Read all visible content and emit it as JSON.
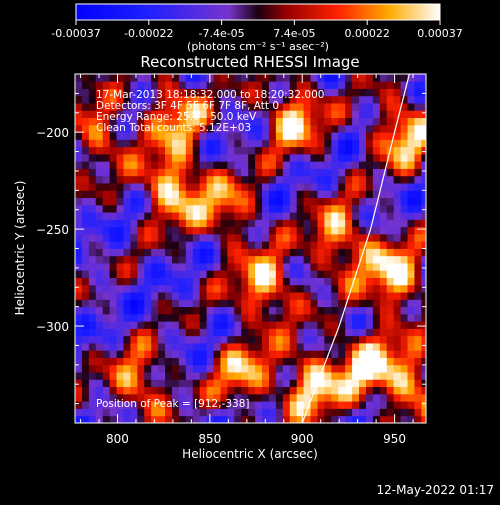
{
  "chart_data": {
    "type": "heatmap",
    "title": "Reconstructed RHESSI Image",
    "xlabel": "Heliocentric X (arcsec)",
    "ylabel": "Heliocentric Y (arcsec)",
    "xlim": [
      777,
      967
    ],
    "ylim": [
      -350,
      -170
    ],
    "x_ticks": [
      800,
      850,
      900,
      950
    ],
    "y_ticks": [
      -200,
      -250,
      -300
    ],
    "colorbar": {
      "min": -0.00037,
      "max": 0.00037,
      "tick_labels": [
        "-0.00037",
        "-0.00022",
        "-7.4e-05",
        "7.4e-05",
        "0.00022",
        "0.00037"
      ],
      "units": "(photons cm⁻² s⁻¹ asec⁻²)"
    },
    "annotations": [
      "17-Mar-2013 18:18:32.000 to 18:20:32.000",
      "Detectors: 3F 4F 5F 6F 7F 8F, Att 0",
      "Energy Range: 25.0 - 50.0 keV",
      "Clean     Total counts: 5.12E+03",
      "Position of Peak = [912,-338]"
    ],
    "peak": [
      912,
      -338
    ],
    "limb_curve": [
      [
        900,
        -350
      ],
      [
        920,
        -300
      ],
      [
        937,
        -250
      ],
      [
        950,
        -200
      ],
      [
        958,
        -170
      ]
    ],
    "intensity_hotspots": [
      {
        "x": 830,
        "y": -228,
        "value": 0.00034
      },
      {
        "x": 832,
        "y": -190,
        "value": 0.00024
      },
      {
        "x": 895,
        "y": -192,
        "value": 0.00028
      },
      {
        "x": 905,
        "y": -330,
        "value": 0.0003
      },
      {
        "x": 920,
        "y": -255,
        "value": 0.00026
      },
      {
        "x": 950,
        "y": -275,
        "value": 0.00033
      },
      {
        "x": 955,
        "y": -200,
        "value": 0.0003
      },
      {
        "x": 880,
        "y": -280,
        "value": 0.00029
      },
      {
        "x": 812,
        "y": -330,
        "value": 0.00022
      },
      {
        "x": 860,
        "y": -240,
        "value": 0.00018
      },
      {
        "x": 935,
        "y": -320,
        "value": 0.00028
      },
      {
        "x": 790,
        "y": -200,
        "value": 0.00018
      },
      {
        "x": 868,
        "y": -325,
        "value": 0.00021
      },
      {
        "x": 960,
        "y": -330,
        "value": 0.00024
      }
    ],
    "grid": false
  },
  "footer": {
    "timestamp": "12-May-2022 01:17"
  }
}
